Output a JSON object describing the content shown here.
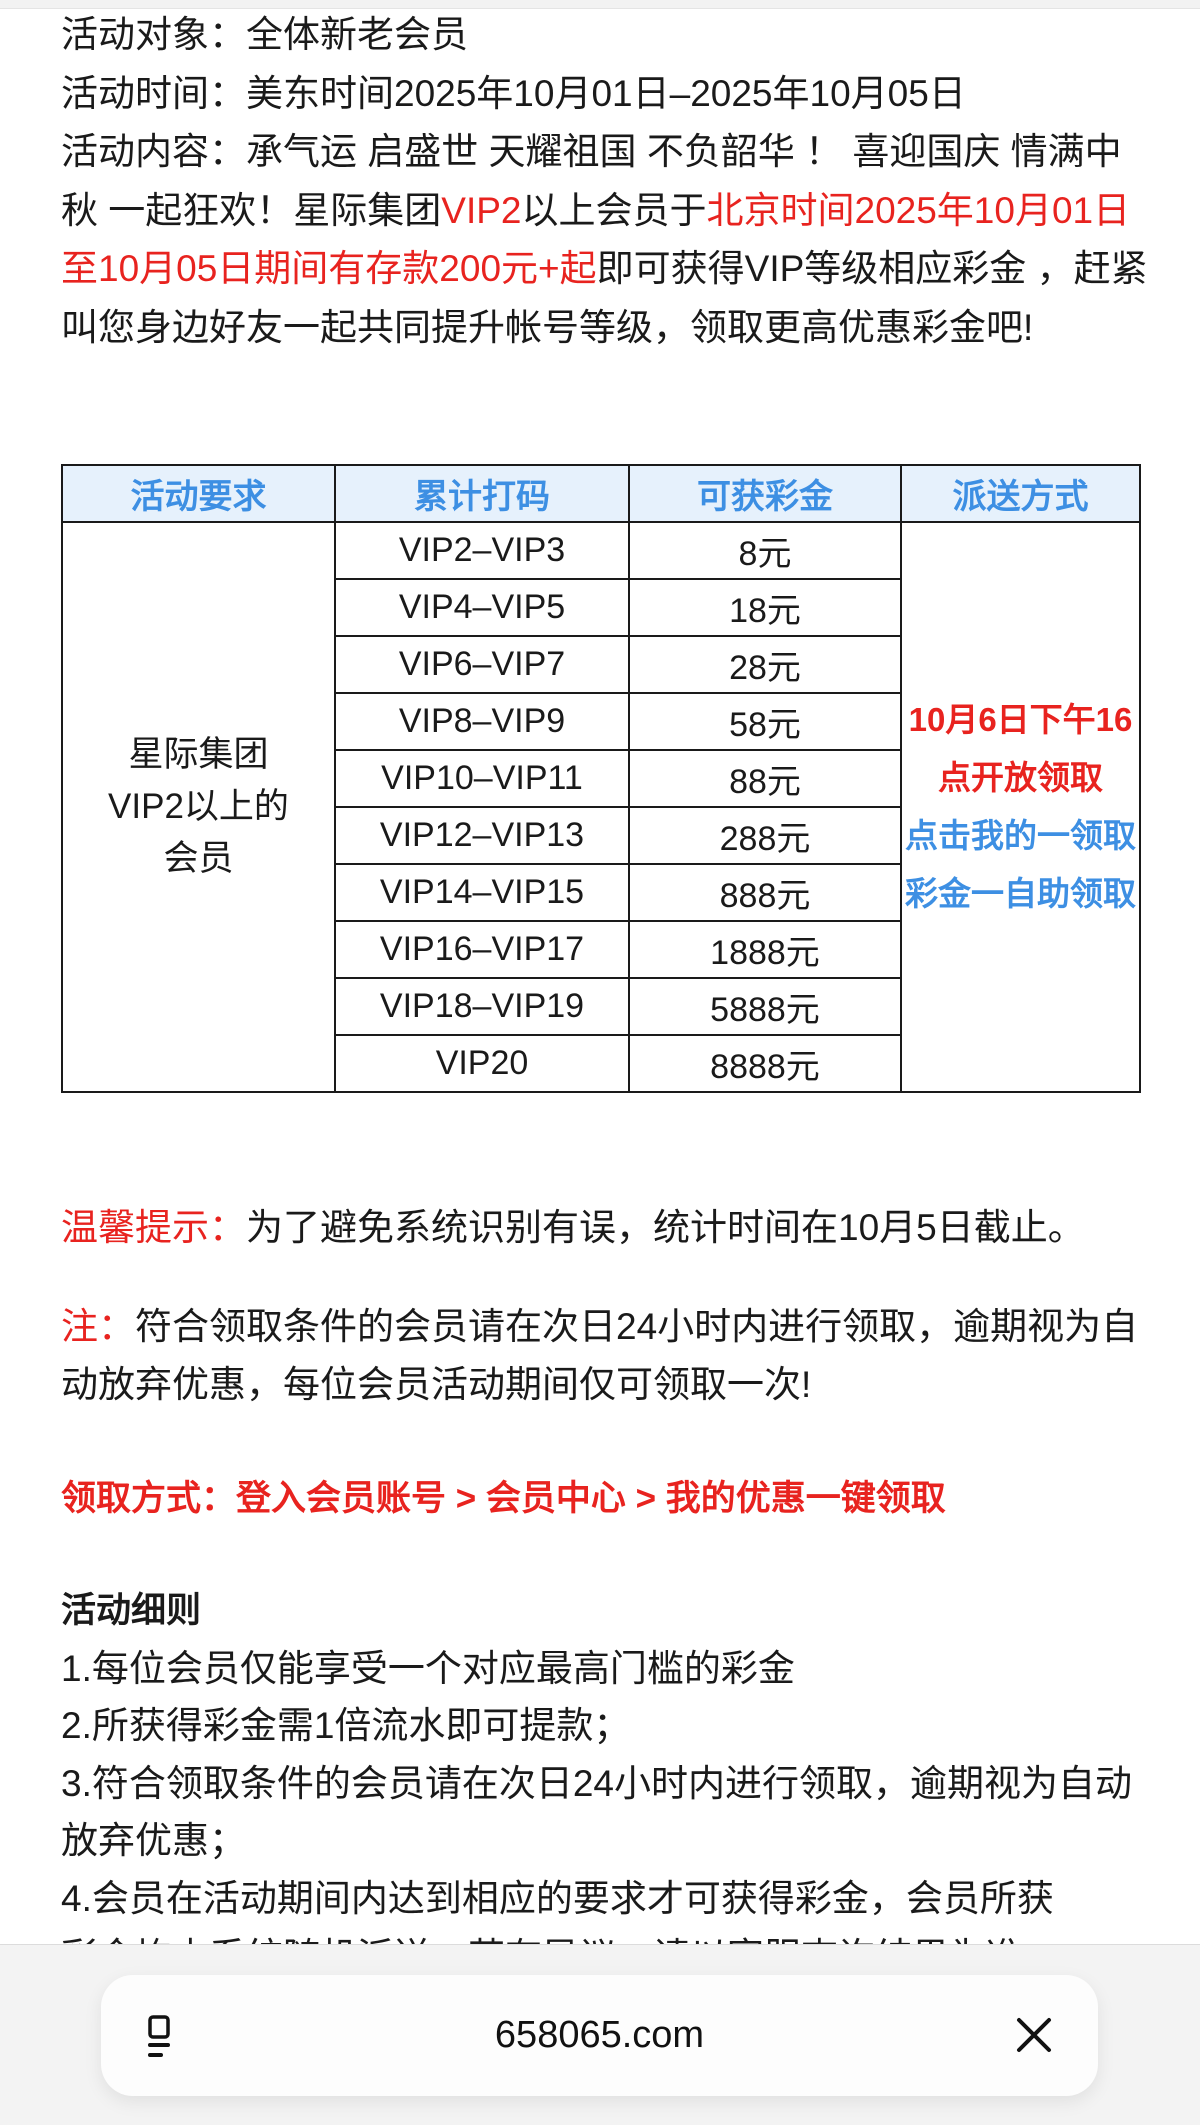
{
  "intro": {
    "target_label": "活动对象：",
    "target_value": "全体新老会员",
    "time_label": "活动时间：",
    "time_value": "美东时间2025年10月01日–2025年10月05日",
    "content_label": "活动内容：",
    "content_p1": "承气运 启盛世 天耀祖国 不负韶华 ！ 喜迎国庆 情满中秋 一起狂欢！星际集团",
    "content_red1": "VIP2",
    "content_p2": "以上会员于",
    "content_red2": "北京时间2025年10月01日至10月05日期间有存款200元+起",
    "content_p3": "即可获得VIP等级相应彩金 ，赶紧叫您身边好友一起共同提升帐号等级，领取更高优惠彩金吧!"
  },
  "table": {
    "headers": [
      "活动要求",
      "累计打码",
      "可获彩金",
      "派送方式"
    ],
    "requirement": "星际集团VIP2以上的会员",
    "rows": [
      {
        "level": "VIP2–VIP3",
        "bonus": "8元"
      },
      {
        "level": "VIP4–VIP5",
        "bonus": "18元"
      },
      {
        "level": "VIP6–VIP7",
        "bonus": "28元"
      },
      {
        "level": "VIP8–VIP9",
        "bonus": "58元"
      },
      {
        "level": "VIP10–VIP11",
        "bonus": "88元"
      },
      {
        "level": "VIP12–VIP13",
        "bonus": "288元"
      },
      {
        "level": "VIP14–VIP15",
        "bonus": "888元"
      },
      {
        "level": "VIP16–VIP17",
        "bonus": "1888元"
      },
      {
        "level": "VIP18–VIP19",
        "bonus": "5888元"
      },
      {
        "level": "VIP20",
        "bonus": "8888元"
      }
    ],
    "distribution_red": "10月6日下午16点开放领取",
    "distribution_blue": "点击我的一领取彩金一自助领取"
  },
  "tips": {
    "warm_label": "温馨提示：",
    "warm_text": "为了避免系统识别有误，统计时间在10月5日截止。",
    "note_label": "注：",
    "note_text": "符合领取条件的会员请在次日24小时内进行领取，逾期视为自动放弃优惠，每位会员活动期间仅可领取一次!",
    "claim_method": "领取方式：登入会员账号 > 会员中心 > 我的优惠一键领取"
  },
  "rules": {
    "title": "活动细则",
    "items": [
      "1.每位会员仅能享受一个对应最高门槛的彩金",
      "2.所获得彩金需1倍流水即可提款；",
      "3.符合领取条件的会员请在次日24小时内进行领取，逾期视为自动放弃优惠；",
      "4.会员在活动期间内达到相应的要求才可获得彩金，会员所获",
      "彩金均由系统随机派送，若有异议，请以客服查询结果为准"
    ]
  },
  "browser": {
    "url": "658065.com",
    "icons": [
      "tabs-icon",
      "close-icon"
    ]
  },
  "colors": {
    "red": "#e8231f",
    "blue": "#3d8fe3",
    "header_bg": "#e6f1fc"
  }
}
